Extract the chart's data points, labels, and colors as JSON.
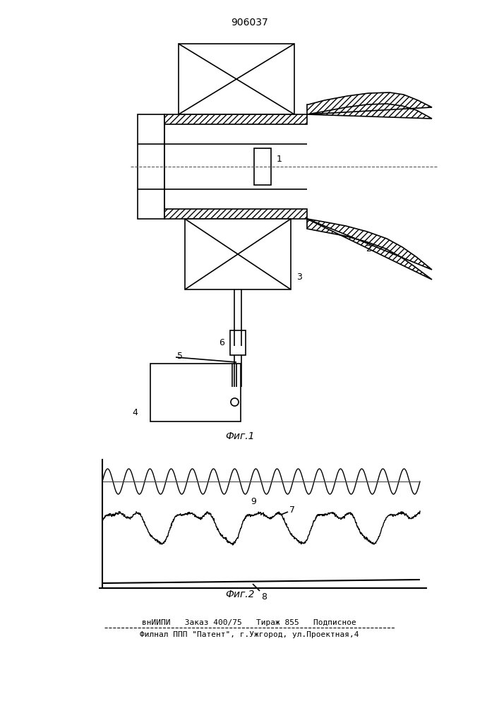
{
  "title": "906037",
  "fig1_label": "Фиг.1",
  "fig2_label": "Фиг.2",
  "footer_line1": "внИИПИ   Заказ 400/75   Тираж 855   Подписное",
  "footer_line2": "Филнал ППП \"Патент\", г.Ужгород, ул.Проектная,4",
  "bg_color": "#ffffff",
  "line_color": "#000000"
}
